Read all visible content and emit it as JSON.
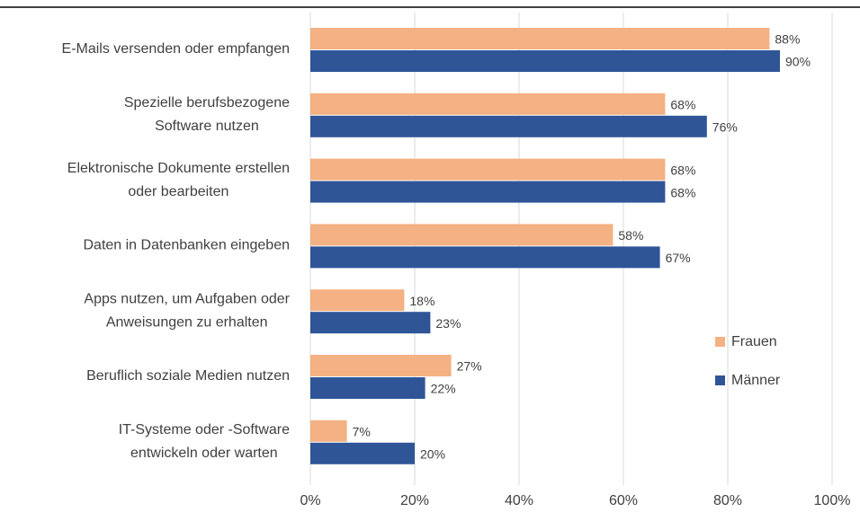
{
  "chart_data": {
    "type": "bar",
    "orientation": "horizontal",
    "categories": [
      [
        "E-Mails versenden oder empfangen"
      ],
      [
        "Spezielle berufsbezogene",
        "Software nutzen"
      ],
      [
        "Elektronische Dokumente erstellen",
        "oder bearbeiten"
      ],
      [
        "Daten in Datenbanken eingeben"
      ],
      [
        "Apps nutzen, um Aufgaben oder",
        "Anweisungen zu erhalten"
      ],
      [
        "Beruflich soziale Medien nutzen"
      ],
      [
        "IT-Systeme oder -Software",
        "entwickeln oder warten"
      ]
    ],
    "series": [
      {
        "name": "Frauen",
        "color": "#f4b183",
        "values": [
          88,
          68,
          68,
          58,
          18,
          27,
          7
        ],
        "value_labels": [
          "88%",
          "68%",
          "68%",
          "58%",
          "18%",
          "27%",
          "7%"
        ]
      },
      {
        "name": "Männer",
        "color": "#2f5597",
        "values": [
          90,
          76,
          68,
          67,
          23,
          22,
          20
        ],
        "value_labels": [
          "90%",
          "76%",
          "68%",
          "67%",
          "23%",
          "22%",
          "20%"
        ]
      }
    ],
    "xlim": [
      0,
      100
    ],
    "xticks": [
      {
        "value": 0,
        "label": "0%"
      },
      {
        "value": 20,
        "label": "20%"
      },
      {
        "value": 40,
        "label": "40%"
      },
      {
        "value": 60,
        "label": "60%"
      },
      {
        "value": 80,
        "label": "80%"
      },
      {
        "value": 100,
        "label": "100%"
      }
    ],
    "grid": true,
    "legend": "right"
  }
}
